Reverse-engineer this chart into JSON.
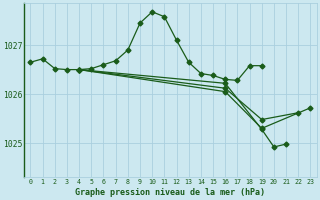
{
  "xlabel": "Graphe pression niveau de la mer (hPa)",
  "background_color": "#cce8f0",
  "grid_color": "#aacfdf",
  "line_color": "#1a5c1a",
  "ylim": [
    1024.3,
    1027.85
  ],
  "yticks": [
    1025,
    1026,
    1027
  ],
  "xticks": [
    0,
    1,
    2,
    3,
    4,
    5,
    6,
    7,
    8,
    9,
    10,
    11,
    12,
    13,
    14,
    15,
    16,
    17,
    18,
    19,
    20,
    21,
    22,
    23
  ],
  "line1": {
    "x": [
      0,
      1,
      2,
      3,
      4,
      5,
      6,
      7,
      8,
      9,
      10,
      11,
      12,
      13,
      14,
      15,
      16,
      17,
      18,
      19
    ],
    "y": [
      1026.65,
      1026.72,
      1026.52,
      1026.5,
      1026.5,
      1026.52,
      1026.6,
      1026.68,
      1026.9,
      1027.45,
      1027.68,
      1027.58,
      1027.1,
      1026.65,
      1026.42,
      1026.38,
      1026.3,
      1026.28,
      1026.58,
      1026.58
    ]
  },
  "line2": {
    "x": [
      4,
      16,
      19,
      20,
      21
    ],
    "y": [
      1026.5,
      1026.22,
      1025.28,
      1024.92,
      1024.98
    ]
  },
  "line3": {
    "x": [
      4,
      16,
      19,
      22
    ],
    "y": [
      1026.5,
      1026.12,
      1025.48,
      1025.62
    ]
  },
  "line4": {
    "x": [
      4,
      16,
      19,
      23
    ],
    "y": [
      1026.5,
      1026.05,
      1025.3,
      1025.72
    ]
  },
  "marker_size": 2.5,
  "line_width": 0.9,
  "figsize": [
    3.2,
    2.0
  ],
  "dpi": 100
}
